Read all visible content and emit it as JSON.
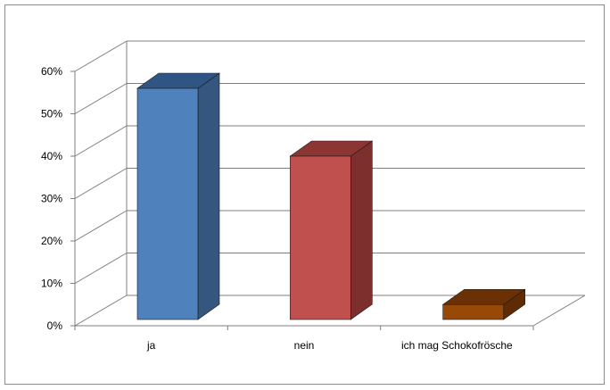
{
  "chart_data": {
    "type": "bar",
    "style": "3d-column",
    "categories": [
      "ja",
      "nein",
      "ich mag Schokofrösche"
    ],
    "values": [
      56,
      40,
      5
    ],
    "value_format": "percent",
    "ylim": [
      0,
      60
    ],
    "yticks": [
      0,
      10,
      20,
      30,
      40,
      50,
      60
    ],
    "ytick_labels": [
      "0%",
      "10%",
      "20%",
      "30%",
      "40%",
      "50%",
      "60%"
    ],
    "title": "",
    "xlabel": "",
    "ylabel": "",
    "grid": true,
    "legend": "none",
    "colors": {
      "bars": [
        "#4f81bd",
        "#c0504d",
        "#984807"
      ],
      "bar_tops": [
        "#2f5584",
        "#8c3533",
        "#6b3105"
      ],
      "bar_sides": [
        "#34567f",
        "#7d2f2d",
        "#5e2b04"
      ],
      "grid": "#7f7f7f",
      "floor": "#7f7f7f"
    }
  }
}
